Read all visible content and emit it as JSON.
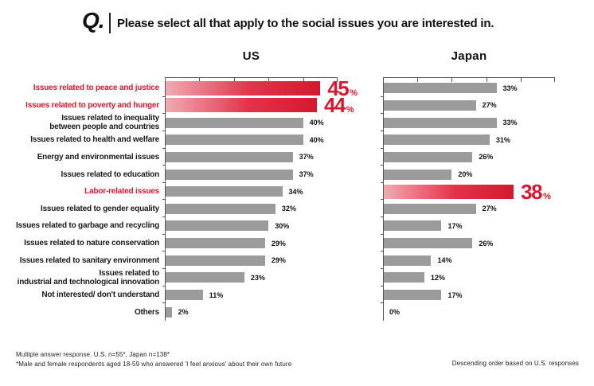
{
  "header": {
    "q_mark": "Q.",
    "title": "Please select all that apply to the social issues you are interested in."
  },
  "columns": {
    "us": "US",
    "japan": "Japan"
  },
  "chart_data": {
    "type": "bar",
    "orientation": "horizontal",
    "axis_max": 50,
    "axis_tick_step": 10,
    "grid": "top-axis-ticks-only",
    "categories": [
      "Issues related to peace and justice",
      "Issues related to poverty and hunger",
      "Issues related to inequality\nbetween people and countries",
      "Issues related to health and welfare",
      "Energy and environmental issues",
      "Issues related to education",
      "Labor-related issues",
      "Issues related to gender equality",
      "Issues related to garbage and recycling",
      "Issues related to nature conservation",
      "Issues related to sanitary environment",
      "Issues related to\nindustrial and technological innovation",
      "Not interested/ don't understand",
      "Others"
    ],
    "red_label_indices": [
      0,
      1,
      6
    ],
    "series": [
      {
        "name": "US",
        "values": [
          45,
          44,
          40,
          40,
          37,
          37,
          34,
          32,
          30,
          29,
          29,
          23,
          11,
          2
        ],
        "highlight_indices": [
          0,
          1
        ]
      },
      {
        "name": "Japan",
        "values": [
          33,
          27,
          33,
          31,
          26,
          20,
          38,
          27,
          17,
          26,
          14,
          12,
          17,
          0
        ],
        "highlight_indices": [
          6
        ]
      }
    ],
    "colors": {
      "bar_gray": "#9b9b9b",
      "bar_red": "#d7182e",
      "bar_red_light": "#f0abb2",
      "label_red": "#d7182e",
      "text": "#1a1a1a",
      "axis": "#555555"
    }
  },
  "footer": {
    "left_line1": "Multiple answer response. U.S. n=55*, Japan n=138*",
    "left_line2": "*Male and female respondents aged 18-59 who answered 'I feel anxious' about their own future",
    "right": "Descending order based on U.S. responses"
  }
}
